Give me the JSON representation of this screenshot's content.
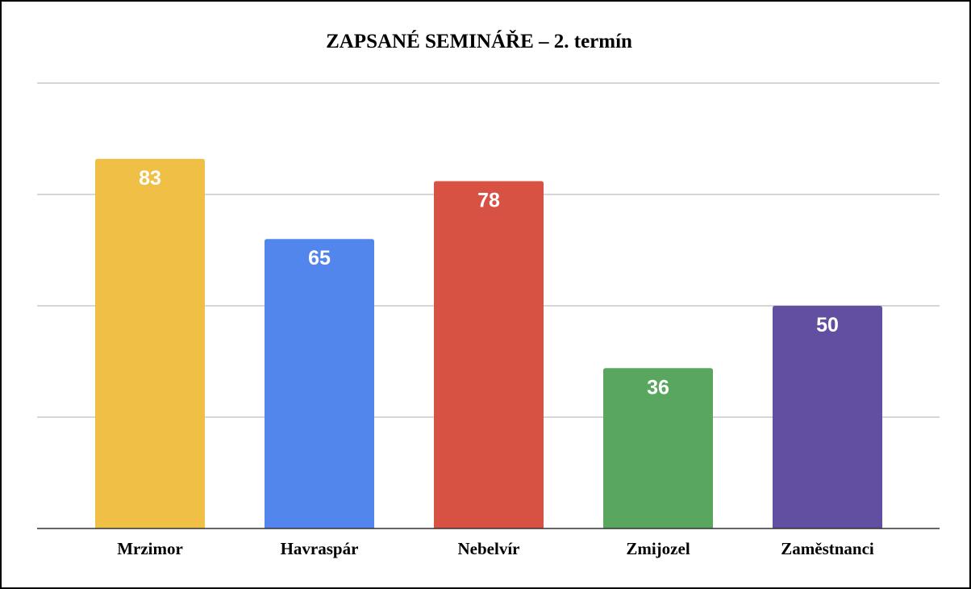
{
  "chart_data": {
    "type": "bar",
    "title": "ZAPSANÉ SEMINÁŘE – 2. termín",
    "xlabel": "",
    "ylabel": "",
    "categories": [
      "Mrzimor",
      "Havraspár",
      "Nebelvír",
      "Zmijozel",
      "Zaměstnanci"
    ],
    "values": [
      83,
      65,
      78,
      36,
      50
    ],
    "colors": [
      "#F0BF45",
      "#5286EC",
      "#D85243",
      "#59A65E",
      "#634FA1"
    ],
    "ylim": [
      0,
      100
    ],
    "gridlines": [
      0,
      25,
      50,
      75,
      100
    ],
    "grid": true,
    "legend": "none",
    "data_labels": true
  }
}
